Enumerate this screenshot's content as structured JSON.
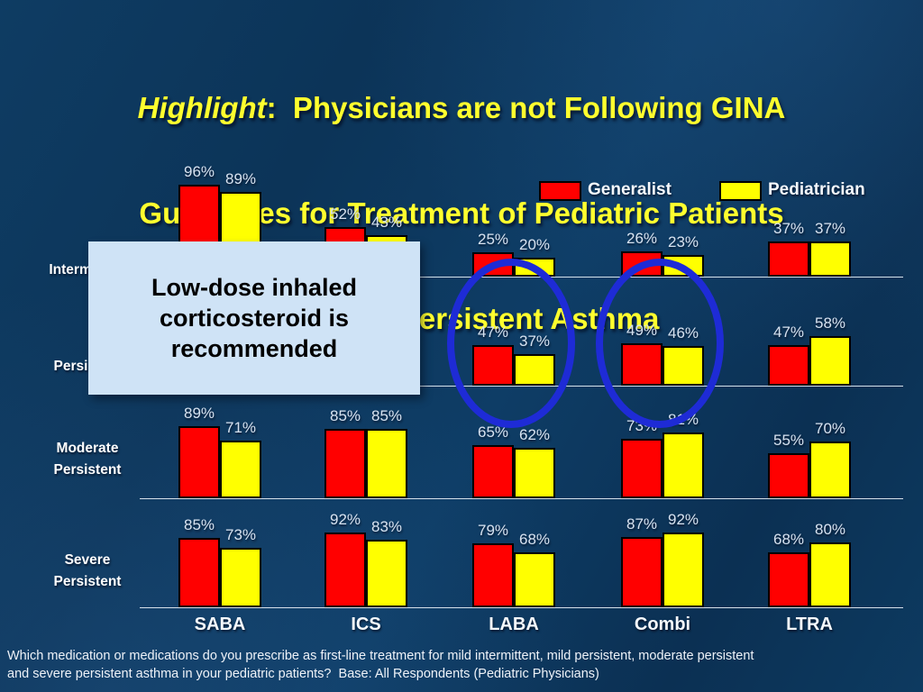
{
  "slide": {
    "title": {
      "line1_italic": "Highlight",
      "line1_rest": ":  Physicians are not Following GINA",
      "line2": "Guidelines for Treatment of Pediatric Patients",
      "line3": "with Mild Persistent Asthma"
    },
    "footnote": "Which medication or medications do you prescribe as first-line treatment for mild intermittent, mild persistent, moderate persistent and severe persistent asthma in your pediatric patients?  Base: All Respondents (Pediatric Physicians)"
  },
  "callout": {
    "lines": [
      "Low-dose inhaled",
      "corticosteroid is",
      "recommended"
    ],
    "bg_color": "#cfe3f6",
    "text_color": "#000000"
  },
  "legend": [
    {
      "label": "Generalist",
      "color": "#ff0000"
    },
    {
      "label": "Pediatrician",
      "color": "#ffff00"
    }
  ],
  "colors": {
    "background": "#0d3a60",
    "title_text": "#ffff2e",
    "bar_generalist": "#ff0000",
    "bar_pediatrician": "#ffff00",
    "annotation_ellipse": "#1e2bd6",
    "axis_line": "#e3eaf2",
    "value_label": "#d7e2f0"
  },
  "chart_data": {
    "type": "bar",
    "unit": "%",
    "title": "",
    "xlabel": "",
    "ylabel": "",
    "legend_position": "top-right",
    "grid": false,
    "value_labels": true,
    "categories": [
      "SABA",
      "ICS",
      "LABA",
      "Combi",
      "LTRA"
    ],
    "series_names": [
      "Generalist",
      "Pediatrician"
    ],
    "series_colors": {
      "Generalist": "#ff0000",
      "Pediatrician": "#ffff00"
    },
    "rows": [
      {
        "label": "Intermittent",
        "label_lines": [
          "Intermittent"
        ],
        "values": {
          "Generalist": [
            96,
            52,
            25,
            26,
            37
          ],
          "Pediatrician": [
            89,
            43,
            20,
            23,
            37
          ]
        }
      },
      {
        "label": "Persistent",
        "label_lines": [
          "Persistent"
        ],
        "note": "SABA and ICS bars hidden behind callout box",
        "values": {
          "Generalist": [
            null,
            null,
            47,
            49,
            47
          ],
          "Pediatrician": [
            null,
            null,
            37,
            46,
            58
          ]
        }
      },
      {
        "label": "Moderate Persistent",
        "label_lines": [
          "Moderate",
          "Persistent"
        ],
        "values": {
          "Generalist": [
            89,
            85,
            65,
            73,
            55
          ],
          "Pediatrician": [
            71,
            85,
            62,
            81,
            70
          ]
        }
      },
      {
        "label": "Severe Persistent",
        "label_lines": [
          "Severe",
          "Persistent"
        ],
        "values": {
          "Generalist": [
            85,
            92,
            79,
            87,
            68
          ],
          "Pediatrician": [
            73,
            83,
            68,
            92,
            80
          ]
        }
      }
    ],
    "annotations": [
      {
        "type": "ellipse",
        "row": "Persistent",
        "category": "LABA",
        "color": "#1e2bd6"
      },
      {
        "type": "ellipse",
        "row": "Persistent",
        "category": "Combi",
        "color": "#1e2bd6"
      }
    ]
  }
}
